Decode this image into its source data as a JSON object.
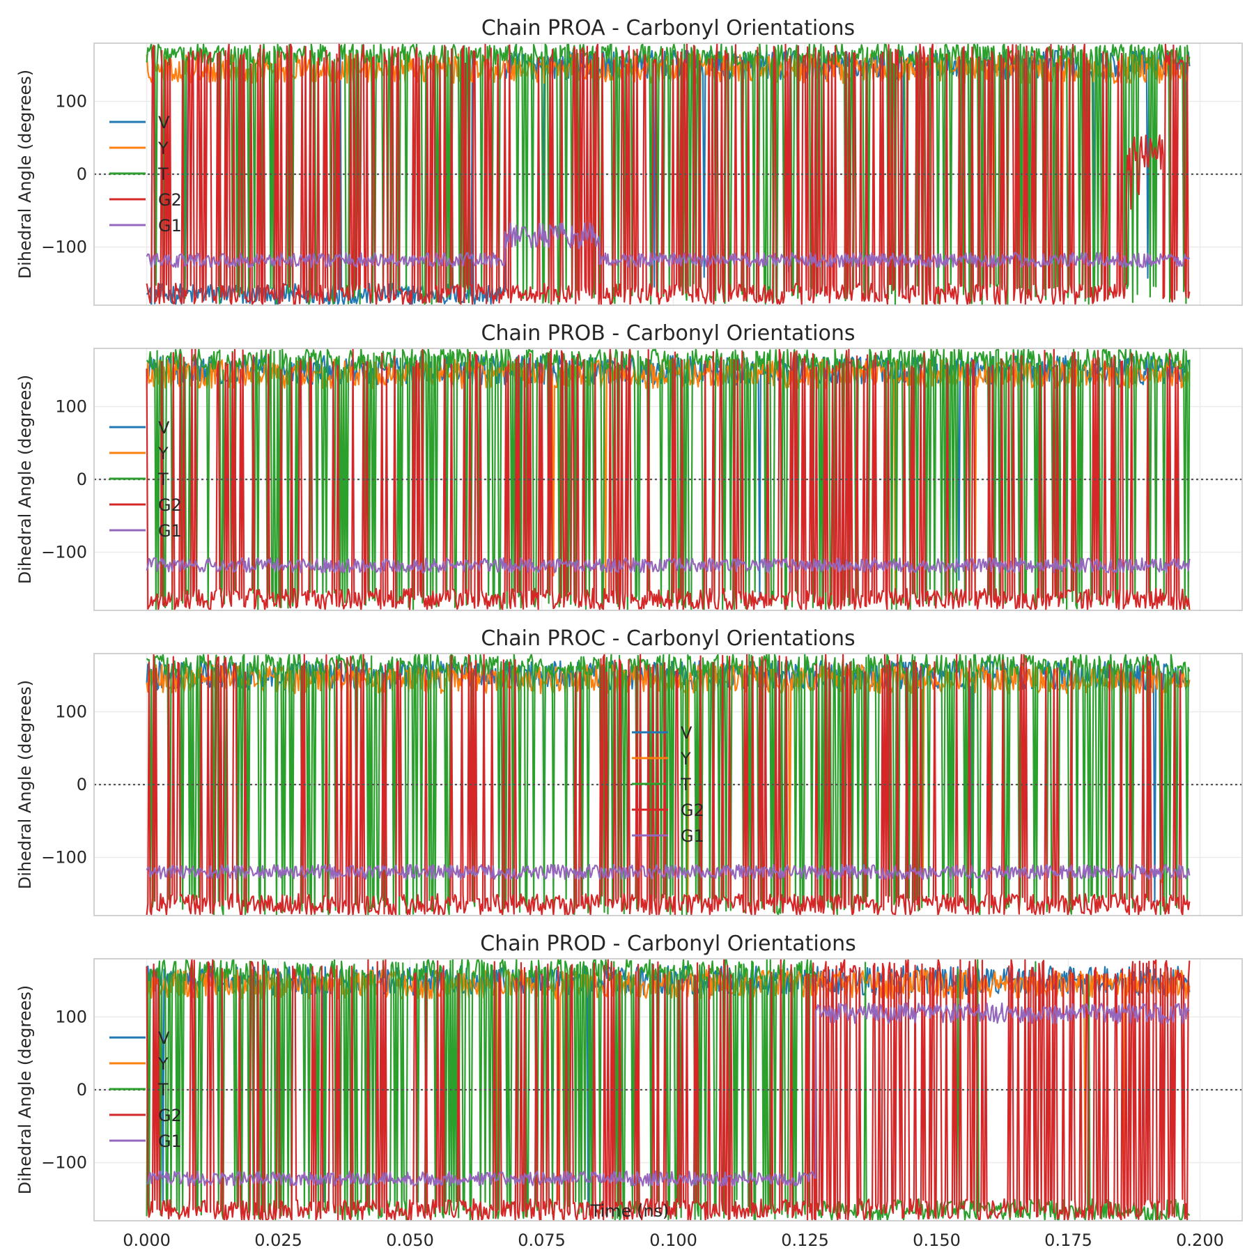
{
  "chart_data": [
    {
      "type": "line",
      "title": "Chain PROA - Carbonyl Orientations",
      "ylabel": "Dihedral Angle (degrees)",
      "xlabel": "",
      "xlim": [
        -0.01,
        0.208
      ],
      "ylim": [
        -180,
        180
      ],
      "yticks": [
        100,
        0,
        -100
      ],
      "ytick_labels": [
        "100",
        "0",
        "−100"
      ],
      "grid": true,
      "zero_line": true,
      "legend_placement": "center-left",
      "series": [
        {
          "name": "V",
          "color": "#1f77b4",
          "states": [
            {
              "x": [
                0.0,
                0.068
              ],
              "base": -165,
              "spread": 15,
              "flips": 6
            },
            {
              "x": [
                0.068,
                0.198
              ],
              "base": 150,
              "spread": 20,
              "flips": 8
            }
          ]
        },
        {
          "name": "Y",
          "color": "#ff7f0e",
          "states": [
            {
              "x": [
                0.0,
                0.198
              ],
              "base": 145,
              "spread": 20,
              "flips": 6
            }
          ]
        },
        {
          "name": "T",
          "color": "#2ca02c",
          "states": [
            {
              "x": [
                0.0,
                0.198
              ],
              "base": 165,
              "spread": 15,
              "flips": 200
            }
          ]
        },
        {
          "name": "G2",
          "color": "#d62728",
          "states": [
            {
              "x": [
                0.0,
                0.186
              ],
              "base": -165,
              "spread": 15,
              "flips": 260
            },
            {
              "x": [
                0.186,
                0.193
              ],
              "base": 30,
              "spread": 25,
              "flips": 4
            },
            {
              "x": [
                0.193,
                0.198
              ],
              "base": -165,
              "spread": 15,
              "flips": 20
            }
          ]
        },
        {
          "name": "G1",
          "color": "#9467bd",
          "states": [
            {
              "x": [
                0.0,
                0.068
              ],
              "base": -118,
              "spread": 10,
              "flips": 0
            },
            {
              "x": [
                0.068,
                0.086
              ],
              "base": -85,
              "spread": 18,
              "flips": 0
            },
            {
              "x": [
                0.086,
                0.198
              ],
              "base": -118,
              "spread": 10,
              "flips": 0
            }
          ]
        }
      ]
    },
    {
      "type": "line",
      "title": "Chain PROB - Carbonyl Orientations",
      "ylabel": "Dihedral Angle (degrees)",
      "xlabel": "",
      "xlim": [
        -0.01,
        0.208
      ],
      "ylim": [
        -180,
        180
      ],
      "yticks": [
        100,
        0,
        -100
      ],
      "ytick_labels": [
        "100",
        "0",
        "−100"
      ],
      "grid": true,
      "zero_line": true,
      "legend_placement": "center-left",
      "series": [
        {
          "name": "V",
          "color": "#1f77b4",
          "states": [
            {
              "x": [
                0.0,
                0.198
              ],
              "base": 150,
              "spread": 20,
              "flips": 4
            }
          ]
        },
        {
          "name": "Y",
          "color": "#ff7f0e",
          "states": [
            {
              "x": [
                0.0,
                0.198
              ],
              "base": 145,
              "spread": 20,
              "flips": 6
            }
          ]
        },
        {
          "name": "T",
          "color": "#2ca02c",
          "states": [
            {
              "x": [
                0.0,
                0.198
              ],
              "base": 165,
              "spread": 15,
              "flips": 230
            }
          ]
        },
        {
          "name": "G2",
          "color": "#d62728",
          "states": [
            {
              "x": [
                0.0,
                0.198
              ],
              "base": -165,
              "spread": 15,
              "flips": 160
            }
          ]
        },
        {
          "name": "G1",
          "color": "#9467bd",
          "states": [
            {
              "x": [
                0.0,
                0.198
              ],
              "base": -118,
              "spread": 10,
              "flips": 0
            }
          ]
        }
      ]
    },
    {
      "type": "line",
      "title": "Chain PROC - Carbonyl Orientations",
      "ylabel": "Dihedral Angle (degrees)",
      "xlabel": "",
      "xlim": [
        -0.01,
        0.208
      ],
      "ylim": [
        -180,
        180
      ],
      "yticks": [
        100,
        0,
        -100
      ],
      "ytick_labels": [
        "100",
        "0",
        "−100"
      ],
      "grid": true,
      "zero_line": true,
      "legend_placement": "center",
      "series": [
        {
          "name": "V",
          "color": "#1f77b4",
          "states": [
            {
              "x": [
                0.0,
                0.198
              ],
              "base": 150,
              "spread": 20,
              "flips": 4
            }
          ]
        },
        {
          "name": "Y",
          "color": "#ff7f0e",
          "states": [
            {
              "x": [
                0.0,
                0.198
              ],
              "base": 145,
              "spread": 20,
              "flips": 6
            }
          ]
        },
        {
          "name": "T",
          "color": "#2ca02c",
          "states": [
            {
              "x": [
                0.0,
                0.198
              ],
              "base": 165,
              "spread": 15,
              "flips": 240
            }
          ]
        },
        {
          "name": "G2",
          "color": "#d62728",
          "states": [
            {
              "x": [
                0.0,
                0.198
              ],
              "base": -165,
              "spread": 15,
              "flips": 130
            }
          ]
        },
        {
          "name": "G1",
          "color": "#9467bd",
          "states": [
            {
              "x": [
                0.0,
                0.198
              ],
              "base": -120,
              "spread": 10,
              "flips": 0
            }
          ]
        }
      ]
    },
    {
      "type": "line",
      "title": "Chain PROD - Carbonyl Orientations",
      "ylabel": "Dihedral Angle (degrees)",
      "xlabel": "Time (ns)",
      "xlim": [
        -0.01,
        0.208
      ],
      "ylim": [
        -180,
        180
      ],
      "yticks": [
        100,
        0,
        -100
      ],
      "ytick_labels": [
        "100",
        "0",
        "−100"
      ],
      "xticks": [
        0.0,
        0.025,
        0.05,
        0.075,
        0.1,
        0.125,
        0.15,
        0.175,
        0.2
      ],
      "xtick_labels": [
        "0.000",
        "0.025",
        "0.050",
        "0.075",
        "0.100",
        "0.125",
        "0.150",
        "0.175",
        "0.200"
      ],
      "grid": true,
      "zero_line": true,
      "legend_placement": "lower-left",
      "series": [
        {
          "name": "V",
          "color": "#1f77b4",
          "states": [
            {
              "x": [
                0.0,
                0.198
              ],
              "base": 150,
              "spread": 20,
              "flips": 4
            }
          ]
        },
        {
          "name": "Y",
          "color": "#ff7f0e",
          "states": [
            {
              "x": [
                0.0,
                0.198
              ],
              "base": 145,
              "spread": 20,
              "flips": 6
            }
          ]
        },
        {
          "name": "T",
          "color": "#2ca02c",
          "states": [
            {
              "x": [
                0.0,
                0.127
              ],
              "base": 165,
              "spread": 15,
              "flips": 200
            },
            {
              "x": [
                0.127,
                0.198
              ],
              "base": -165,
              "spread": 15,
              "flips": 6
            }
          ]
        },
        {
          "name": "G2",
          "color": "#d62728",
          "states": [
            {
              "x": [
                0.0,
                0.127
              ],
              "base": -165,
              "spread": 15,
              "flips": 90
            },
            {
              "x": [
                0.127,
                0.198
              ],
              "base": 165,
              "spread": 15,
              "flips": 320
            }
          ]
        },
        {
          "name": "G1",
          "color": "#9467bd",
          "states": [
            {
              "x": [
                0.0,
                0.127
              ],
              "base": -122,
              "spread": 10,
              "flips": 0
            },
            {
              "x": [
                0.127,
                0.198
              ],
              "base": 105,
              "spread": 14,
              "flips": 0
            }
          ]
        }
      ]
    }
  ]
}
